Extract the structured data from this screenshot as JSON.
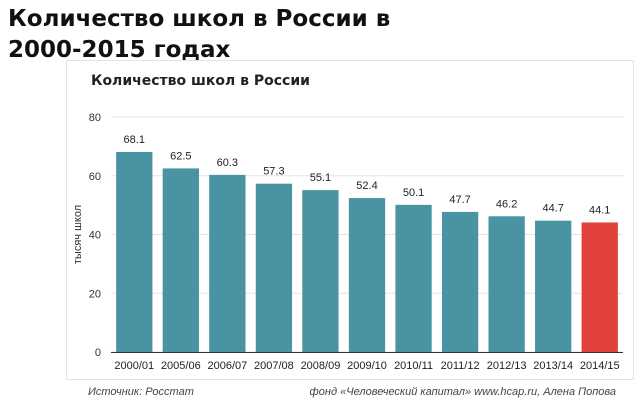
{
  "headline": "Количество школ в России в 2000-2015 годах",
  "footer": {
    "source": "Источник: Росстат",
    "credit": "фонд «Человеческий капитал» www.hcap.ru, Алена Попова"
  },
  "colors": {
    "bar": "#4a93a3",
    "highlight": "#e0413b",
    "grid": "#e3e3e3",
    "axis": "#333333"
  },
  "chart_data": {
    "type": "bar",
    "title": "Количество школ в России",
    "ylabel": "тысяч школ",
    "xlabel": "",
    "ylim": [
      0,
      80
    ],
    "yticks": [
      0,
      20,
      40,
      60,
      80
    ],
    "grid": true,
    "categories": [
      "2000/01",
      "2005/06",
      "2006/07",
      "2007/08",
      "2008/09",
      "2009/10",
      "2010/11",
      "2011/12",
      "2012/13",
      "2013/14",
      "2014/15"
    ],
    "values": [
      68.1,
      62.5,
      60.3,
      57.3,
      55.1,
      52.4,
      50.1,
      47.7,
      46.2,
      44.7,
      44.1
    ],
    "value_labels": [
      "68.1",
      "62.5",
      "60.3",
      "57.3",
      "55.1",
      "52.4",
      "50.1",
      "47.7",
      "46.2",
      "44.7",
      "44.1"
    ],
    "highlight_index": 10
  }
}
